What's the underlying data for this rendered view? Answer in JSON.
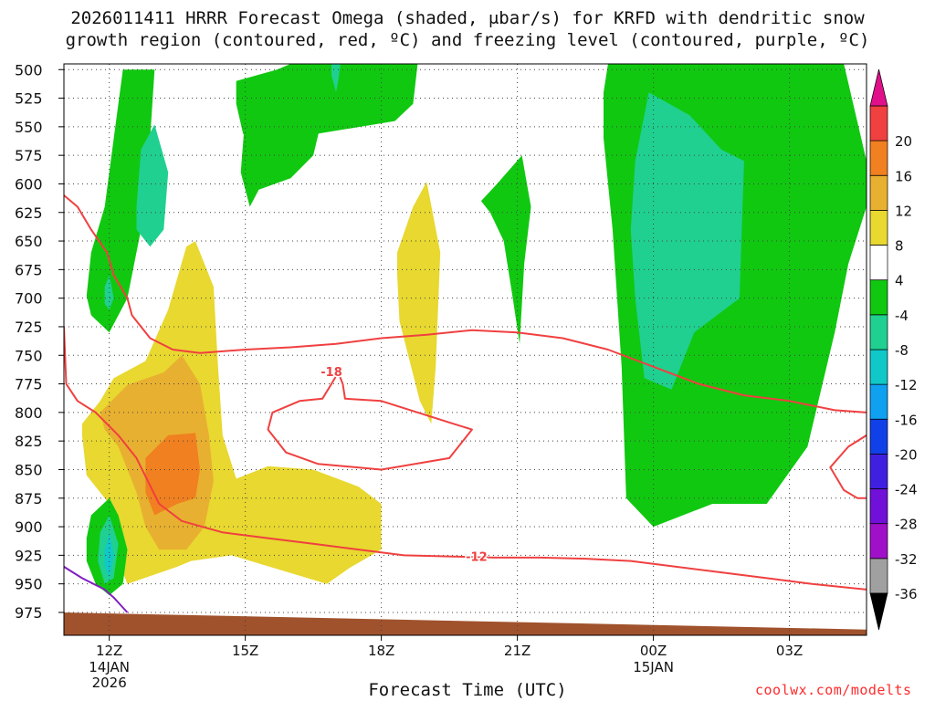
{
  "chart_data": {
    "type": "heatmap",
    "title_line1": "2026011411 HRRR Forecast Omega (shaded, μbar/s) for KRFD with dendritic snow",
    "title_line2": "growth region (contoured, red, ºC) and freezing level (contoured, purple, ºC)",
    "xlabel": "Forecast Time (UTC)",
    "credit": "coolwx.com/modelts",
    "x_range_hours": [
      11,
      28.7
    ],
    "y_range_mb": [
      495,
      995
    ],
    "y_ticks": [
      500,
      525,
      550,
      575,
      600,
      625,
      650,
      675,
      700,
      725,
      750,
      775,
      800,
      825,
      850,
      875,
      900,
      925,
      950,
      975
    ],
    "x_ticks": [
      {
        "hour": 12,
        "label": "12Z",
        "sub1": "14JAN",
        "sub2": "2026"
      },
      {
        "hour": 15,
        "label": "15Z",
        "sub1": "",
        "sub2": ""
      },
      {
        "hour": 18,
        "label": "18Z",
        "sub1": "",
        "sub2": ""
      },
      {
        "hour": 21,
        "label": "21Z",
        "sub1": "",
        "sub2": ""
      },
      {
        "hour": 24,
        "label": "00Z",
        "sub1": "15JAN",
        "sub2": ""
      },
      {
        "hour": 27,
        "label": "03Z",
        "sub1": "",
        "sub2": ""
      }
    ],
    "colorbar": [
      {
        "label": "-36",
        "color": "#a0a0a0"
      },
      {
        "label": "-32",
        "color": "#a010c8"
      },
      {
        "label": "-28",
        "color": "#7010d8"
      },
      {
        "label": "-24",
        "color": "#4020e0"
      },
      {
        "label": "-20",
        "color": "#1040e8"
      },
      {
        "label": "-16",
        "color": "#10a0f0"
      },
      {
        "label": "-12",
        "color": "#10c8c8"
      },
      {
        "label": "-8",
        "color": "#20d090"
      },
      {
        "label": "-4",
        "color": "#10c810"
      },
      {
        "label": "4",
        "color": "#ffffff"
      },
      {
        "label": "8",
        "color": "#e8d830"
      },
      {
        "label": "12",
        "color": "#e8b030"
      },
      {
        "label": "16",
        "color": "#f08020"
      },
      {
        "label": "20",
        "color": "#f04040"
      }
    ],
    "colorbar_top_color": "#e0108a",
    "colorbar_bottom_color": "#000000",
    "contour_labels": [
      {
        "text": "-18",
        "hour": 16.9,
        "mb": 764,
        "color": "#f04040"
      },
      {
        "text": "-12",
        "hour": 20.1,
        "mb": 926,
        "color": "#f04040"
      }
    ],
    "shaded_regions": [
      {
        "level": -4,
        "color": "#10c810",
        "pts": [
          [
            11.5,
            698
          ],
          [
            11.6,
            660
          ],
          [
            11.9,
            620
          ],
          [
            12.1,
            560
          ],
          [
            12.3,
            500
          ],
          [
            12.8,
            500
          ],
          [
            13.0,
            500
          ],
          [
            12.9,
            560
          ],
          [
            12.7,
            640
          ],
          [
            12.4,
            700
          ],
          [
            12.0,
            730
          ],
          [
            11.6,
            715
          ]
        ]
      },
      {
        "level": -8,
        "color": "#20d090",
        "pts": [
          [
            12.6,
            620
          ],
          [
            12.7,
            570
          ],
          [
            13.0,
            548
          ],
          [
            13.3,
            590
          ],
          [
            13.2,
            640
          ],
          [
            12.9,
            655
          ],
          [
            12.6,
            640
          ]
        ]
      },
      {
        "level": -8,
        "color": "#20d090",
        "pts": [
          [
            11.9,
            690
          ],
          [
            12.0,
            680
          ],
          [
            12.1,
            700
          ],
          [
            12.0,
            710
          ],
          [
            11.9,
            705
          ]
        ]
      },
      {
        "level": -4,
        "color": "#10c810",
        "pts": [
          [
            14.8,
            530
          ],
          [
            14.8,
            510
          ],
          [
            15.7,
            500
          ],
          [
            16.5,
            495
          ],
          [
            18.8,
            495
          ],
          [
            18.7,
            530
          ],
          [
            18.3,
            545
          ],
          [
            16.0,
            560
          ],
          [
            15.2,
            570
          ],
          [
            14.95,
            556
          ]
        ]
      },
      {
        "level": -4,
        "color": "#10c810",
        "pts": [
          [
            15.0,
            540
          ],
          [
            15.2,
            520
          ],
          [
            15.7,
            500
          ],
          [
            16.0,
            495
          ],
          [
            17.3,
            495
          ],
          [
            16.8,
            525
          ],
          [
            16.5,
            575
          ],
          [
            16.0,
            595
          ],
          [
            15.3,
            605
          ],
          [
            15.1,
            620
          ],
          [
            14.9,
            590
          ]
        ]
      },
      {
        "level": -8,
        "color": "#20d090",
        "pts": [
          [
            16.9,
            495
          ],
          [
            17.1,
            495
          ],
          [
            17.05,
            510
          ],
          [
            17.0,
            520
          ],
          [
            16.9,
            505
          ]
        ]
      },
      {
        "level": -4,
        "color": "#10c810",
        "pts": [
          [
            20.2,
            615
          ],
          [
            20.55,
            600
          ],
          [
            21.1,
            575
          ],
          [
            21.3,
            620
          ],
          [
            21.15,
            670
          ],
          [
            21.05,
            740
          ],
          [
            20.9,
            700
          ],
          [
            20.7,
            650
          ],
          [
            20.4,
            625
          ]
        ]
      },
      {
        "level": 4,
        "color": "#e8d830",
        "pts": [
          [
            18.35,
            660
          ],
          [
            18.7,
            620
          ],
          [
            19.0,
            598
          ],
          [
            19.3,
            660
          ],
          [
            19.2,
            760
          ],
          [
            19.1,
            810
          ],
          [
            18.85,
            790
          ],
          [
            18.4,
            720
          ],
          [
            18.35,
            680
          ]
        ]
      },
      {
        "level": -4,
        "color": "#10c810",
        "pts": [
          [
            23.0,
            495
          ],
          [
            28.2,
            495
          ],
          [
            28.7,
            580
          ],
          [
            28.7,
            620
          ],
          [
            28.3,
            670
          ],
          [
            28.0,
            730
          ],
          [
            27.4,
            830
          ],
          [
            26.5,
            880
          ],
          [
            25.3,
            880
          ],
          [
            24.0,
            900
          ],
          [
            23.4,
            875
          ],
          [
            23.3,
            760
          ],
          [
            23.1,
            640
          ],
          [
            22.9,
            560
          ],
          [
            22.9,
            520
          ]
        ]
      },
      {
        "level": -8,
        "color": "#20d090",
        "pts": [
          [
            23.6,
            580
          ],
          [
            23.9,
            520
          ],
          [
            24.8,
            540
          ],
          [
            25.5,
            570
          ],
          [
            26.0,
            580
          ],
          [
            25.9,
            700
          ],
          [
            24.9,
            730
          ],
          [
            24.4,
            780
          ],
          [
            23.8,
            770
          ],
          [
            23.6,
            700
          ],
          [
            23.5,
            640
          ]
        ]
      },
      {
        "level": 4,
        "color": "#e8d830",
        "pts": [
          [
            11.4,
            810
          ],
          [
            11.8,
            790
          ],
          [
            12.1,
            770
          ],
          [
            12.8,
            755
          ],
          [
            13.3,
            710
          ],
          [
            13.7,
            655
          ],
          [
            13.9,
            650
          ],
          [
            14.3,
            690
          ],
          [
            14.4,
            760
          ],
          [
            14.5,
            820
          ],
          [
            14.8,
            858
          ],
          [
            15.5,
            847
          ],
          [
            16.5,
            850
          ],
          [
            17.5,
            865
          ],
          [
            18.0,
            880
          ],
          [
            18.0,
            920
          ],
          [
            17.3,
            936
          ],
          [
            16.8,
            950
          ],
          [
            14.7,
            925
          ],
          [
            13.8,
            930
          ],
          [
            13.5,
            935
          ],
          [
            12.4,
            950
          ],
          [
            12.2,
            930
          ],
          [
            12.0,
            880
          ],
          [
            11.5,
            855
          ],
          [
            11.4,
            820
          ]
        ]
      },
      {
        "level": 8,
        "color": "#e8b030",
        "pts": [
          [
            11.8,
            800
          ],
          [
            12.4,
            776
          ],
          [
            13.2,
            765
          ],
          [
            13.6,
            750
          ],
          [
            14.0,
            775
          ],
          [
            14.2,
            820
          ],
          [
            14.3,
            860
          ],
          [
            14.1,
            900
          ],
          [
            13.7,
            920
          ],
          [
            13.1,
            920
          ],
          [
            12.8,
            900
          ],
          [
            12.6,
            870
          ],
          [
            12.2,
            830
          ],
          [
            11.9,
            815
          ]
        ]
      },
      {
        "level": 12,
        "color": "#f08020",
        "pts": [
          [
            12.8,
            840
          ],
          [
            13.3,
            820
          ],
          [
            13.9,
            818
          ],
          [
            14.0,
            850
          ],
          [
            13.9,
            875
          ],
          [
            13.5,
            880
          ],
          [
            13.0,
            890
          ],
          [
            12.8,
            870
          ]
        ]
      },
      {
        "level": -4,
        "color": "#10c810",
        "pts": [
          [
            11.5,
            910
          ],
          [
            11.6,
            890
          ],
          [
            12.0,
            875
          ],
          [
            12.2,
            890
          ],
          [
            12.4,
            920
          ],
          [
            12.3,
            950
          ],
          [
            12.0,
            960
          ],
          [
            11.7,
            950
          ],
          [
            11.5,
            930
          ]
        ]
      },
      {
        "level": -8,
        "color": "#20d090",
        "pts": [
          [
            11.8,
            905
          ],
          [
            12.0,
            890
          ],
          [
            12.2,
            915
          ],
          [
            12.1,
            945
          ],
          [
            11.9,
            950
          ],
          [
            11.75,
            930
          ]
        ]
      },
      {
        "level": -12,
        "color": "#10c8c8",
        "pts": [
          [
            11.9,
            920
          ],
          [
            12.0,
            905
          ],
          [
            12.1,
            925
          ],
          [
            12.0,
            945
          ],
          [
            11.9,
            935
          ]
        ]
      }
    ],
    "contours": [
      {
        "kind": "dgz",
        "color": "#f04040",
        "pts": [
          [
            11.0,
            610
          ],
          [
            11.3,
            620
          ],
          [
            11.6,
            640
          ],
          [
            11.95,
            660
          ],
          [
            12.1,
            680
          ],
          [
            12.4,
            700
          ],
          [
            12.5,
            715
          ],
          [
            12.9,
            735
          ],
          [
            13.4,
            745
          ],
          [
            14.0,
            748
          ],
          [
            15.0,
            745
          ],
          [
            16.0,
            743
          ],
          [
            17.0,
            740
          ],
          [
            18.0,
            735
          ],
          [
            19.0,
            732
          ],
          [
            20.0,
            728
          ],
          [
            21.0,
            730
          ],
          [
            22.0,
            735
          ],
          [
            23.0,
            745
          ],
          [
            24.0,
            760
          ],
          [
            25.0,
            775
          ],
          [
            26.0,
            785
          ],
          [
            27.0,
            790
          ],
          [
            28.0,
            798
          ],
          [
            28.7,
            800
          ]
        ]
      },
      {
        "kind": "dgz",
        "color": "#f04040",
        "pts": [
          [
            11.0,
            725
          ],
          [
            11.05,
            775
          ],
          [
            11.3,
            790
          ],
          [
            11.7,
            800
          ],
          [
            12.2,
            820
          ],
          [
            12.6,
            840
          ],
          [
            12.85,
            860
          ],
          [
            13.1,
            880
          ],
          [
            13.6,
            895
          ],
          [
            14.5,
            905
          ],
          [
            15.5,
            910
          ],
          [
            16.5,
            915
          ],
          [
            17.5,
            920
          ],
          [
            18.5,
            925
          ],
          [
            19.5,
            926
          ],
          [
            20.5,
            927
          ],
          [
            21.5,
            927
          ],
          [
            22.5,
            928
          ],
          [
            23.5,
            930
          ],
          [
            24.5,
            935
          ],
          [
            25.5,
            940
          ],
          [
            26.5,
            945
          ],
          [
            27.5,
            950
          ],
          [
            28.7,
            955
          ]
        ]
      },
      {
        "kind": "dgz18",
        "color": "#f04040",
        "pts": [
          [
            16.9,
            775
          ],
          [
            16.7,
            788
          ],
          [
            16.2,
            790
          ],
          [
            15.6,
            800
          ],
          [
            15.5,
            815
          ],
          [
            15.9,
            835
          ],
          [
            16.6,
            845
          ],
          [
            18.0,
            850
          ],
          [
            19.5,
            840
          ],
          [
            20.0,
            815
          ],
          [
            19.6,
            810
          ],
          [
            18.0,
            790
          ],
          [
            17.2,
            788
          ],
          [
            17.15,
            775
          ],
          [
            17.05,
            765
          ],
          [
            16.9,
            775
          ]
        ]
      },
      {
        "kind": "dgz",
        "color": "#f04040",
        "pts": [
          [
            28.7,
            820
          ],
          [
            28.3,
            830
          ],
          [
            27.9,
            848
          ],
          [
            28.2,
            868
          ],
          [
            28.5,
            875
          ],
          [
            28.7,
            875
          ]
        ]
      },
      {
        "kind": "freezing",
        "color": "#8020c0",
        "pts": [
          [
            11.0,
            935
          ],
          [
            11.4,
            945
          ],
          [
            11.9,
            955
          ],
          [
            12.1,
            962
          ],
          [
            12.4,
            975
          ]
        ]
      }
    ],
    "terrain": {
      "color": "#a0522d",
      "mb_left": 975,
      "mb_right": 990,
      "base_mb": 995
    }
  }
}
